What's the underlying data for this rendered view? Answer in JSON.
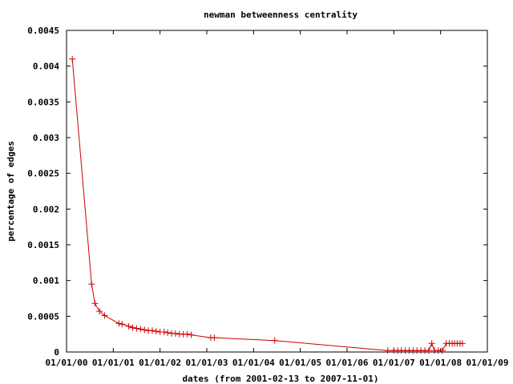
{
  "chart_data": {
    "type": "line",
    "title": "newman betweenness centrality",
    "xlabel": "dates (from 2001-02-13 to 2007-11-01)",
    "ylabel": "percentage of edges",
    "x_tick_labels": [
      "01/01/00",
      "01/01/01",
      "01/01/02",
      "01/01/03",
      "01/01/04",
      "01/01/05",
      "01/01/06",
      "01/01/07",
      "01/01/08",
      "01/01/09"
    ],
    "x_range": [
      "2000-01-01",
      "2009-01-01"
    ],
    "y_tick_labels": [
      "0",
      "0.0005",
      "0.001",
      "0.0015",
      "0.002",
      "0.0025",
      "0.003",
      "0.0035",
      "0.004",
      "0.0045"
    ],
    "ylim": [
      0,
      0.0045
    ],
    "grid": false,
    "legend": "none",
    "series": [
      {
        "color": "#cc0000",
        "marker": "plus",
        "x": [
          "2000-02-15",
          "2000-07-15",
          "2000-08-10",
          "2000-09-15",
          "2000-10-25",
          "2001-02-13",
          "2001-03-10",
          "2001-05-01",
          "2001-06-01",
          "2001-07-01",
          "2001-08-01",
          "2001-09-01",
          "2001-10-01",
          "2001-11-01",
          "2001-12-01",
          "2002-01-01",
          "2002-02-01",
          "2002-03-01",
          "2002-04-01",
          "2002-05-01",
          "2002-06-01",
          "2002-07-01",
          "2002-08-01",
          "2002-09-01",
          "2003-02-01",
          "2003-03-01",
          "2004-06-15",
          "2006-11-15",
          "2007-01-01",
          "2007-02-01",
          "2007-03-01",
          "2007-04-01",
          "2007-05-01",
          "2007-06-01",
          "2007-07-01",
          "2007-08-01",
          "2007-09-01",
          "2007-10-01",
          "2007-10-25",
          "2007-11-15",
          "2007-12-15",
          "2008-01-15",
          "2008-02-15",
          "2008-03-10",
          "2008-04-01",
          "2008-04-20",
          "2008-05-10",
          "2008-06-01",
          "2008-06-20"
        ],
        "y": [
          0.0041,
          0.00095,
          0.00068,
          0.00057,
          0.00051,
          0.0004,
          0.00039,
          0.00036,
          0.00034,
          0.00033,
          0.00032,
          0.00031,
          0.0003,
          0.0003,
          0.00029,
          0.00028,
          0.00028,
          0.00027,
          0.00026,
          0.00026,
          0.00025,
          0.00025,
          0.00025,
          0.00024,
          0.0002,
          0.0002,
          0.00016,
          2e-05,
          2e-05,
          2e-05,
          2e-05,
          2e-05,
          2e-05,
          2e-05,
          2e-05,
          2e-05,
          2e-05,
          2e-05,
          0.00012,
          2e-05,
          2e-05,
          2e-05,
          0.00012,
          0.00012,
          0.00012,
          0.00012,
          0.00012,
          0.00012,
          0.00012
        ]
      }
    ]
  }
}
